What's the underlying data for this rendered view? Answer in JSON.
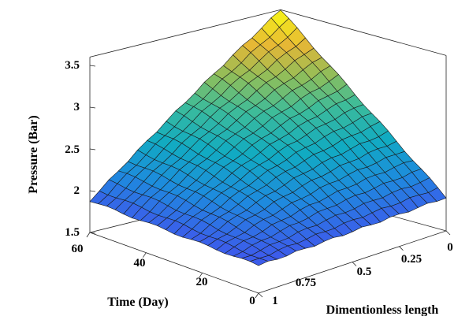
{
  "chart_data": {
    "type": "surface",
    "title": "",
    "xlabel": "Dimentionless length",
    "ylabel": "Time (Day)",
    "zlabel": "Pressure (Bar)",
    "xlim": [
      0,
      1
    ],
    "ylim": [
      0,
      60
    ],
    "zlim": [
      1.5,
      3.6
    ],
    "x_ticks": [
      "0",
      "0.25",
      "0.5",
      "0.75",
      "1"
    ],
    "y_ticks": [
      "0",
      "20",
      "40",
      "60"
    ],
    "z_ticks": [
      "1.5",
      "2",
      "2.5",
      "3",
      "3.5"
    ],
    "grid_size": [
      21,
      21
    ],
    "corner_values": {
      "length_0_time_0": 1.9,
      "length_1_time_0": 1.83,
      "length_0_time_60": 3.6,
      "length_1_time_60": 1.88
    },
    "colormap": "parula",
    "colors": {
      "low": "#3e26a8",
      "high": "#f9fb15"
    }
  }
}
